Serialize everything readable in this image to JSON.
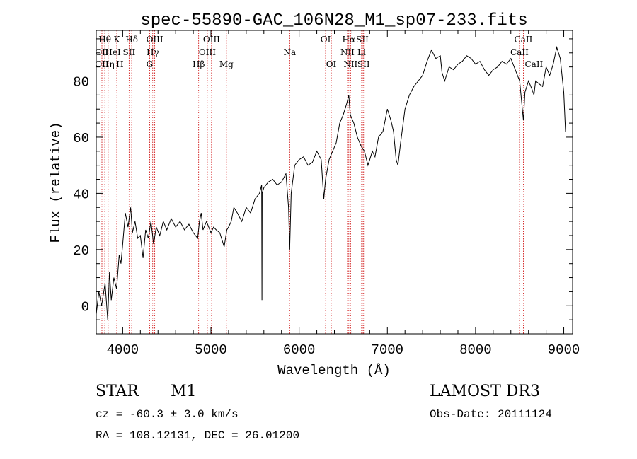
{
  "chart_data": {
    "type": "line",
    "title": "spec-55890-GAC_106N28_M1_sp07-233.fits",
    "xlabel": "Wavelength (Å)",
    "ylabel": "Flux (relative)",
    "xlim": [
      3700,
      9100
    ],
    "ylim": [
      -10,
      98
    ],
    "xticks": [
      4000,
      5000,
      6000,
      7000,
      8000,
      9000
    ],
    "yticks": [
      0,
      20,
      40,
      60,
      80
    ],
    "grid": false,
    "series": [
      {
        "name": "flux",
        "x": [
          3700,
          3730,
          3760,
          3800,
          3830,
          3850,
          3870,
          3900,
          3930,
          3960,
          3980,
          4000,
          4030,
          4060,
          4090,
          4110,
          4140,
          4170,
          4200,
          4230,
          4260,
          4290,
          4320,
          4350,
          4380,
          4420,
          4460,
          4500,
          4550,
          4600,
          4650,
          4700,
          4750,
          4800,
          4850,
          4870,
          4890,
          4910,
          4950,
          5000,
          5030,
          5060,
          5100,
          5150,
          5180,
          5200,
          5230,
          5260,
          5300,
          5350,
          5400,
          5450,
          5500,
          5550,
          5575,
          5578,
          5581,
          5600,
          5650,
          5700,
          5750,
          5800,
          5850,
          5880,
          5893,
          5910,
          5950,
          6000,
          6050,
          6100,
          6150,
          6200,
          6250,
          6280,
          6300,
          6340,
          6380,
          6420,
          6460,
          6500,
          6540,
          6563,
          6580,
          6620,
          6660,
          6700,
          6740,
          6780,
          6800,
          6830,
          6860,
          6900,
          6950,
          7000,
          7040,
          7070,
          7100,
          7120,
          7150,
          7200,
          7250,
          7300,
          7350,
          7400,
          7450,
          7500,
          7550,
          7600,
          7620,
          7650,
          7700,
          7750,
          7800,
          7850,
          7900,
          7950,
          8000,
          8050,
          8100,
          8150,
          8200,
          8250,
          8300,
          8350,
          8400,
          8450,
          8500,
          8542,
          8560,
          8600,
          8640,
          8662,
          8680,
          8720,
          8760,
          8800,
          8840,
          8880,
          8920,
          8960,
          9000,
          9020
        ],
        "values": [
          -3,
          5,
          0,
          8,
          -5,
          12,
          2,
          10,
          6,
          18,
          15,
          22,
          33,
          28,
          35,
          26,
          30,
          24,
          25,
          17,
          27,
          24,
          30,
          22,
          28,
          25,
          30,
          27,
          31,
          28,
          30,
          27,
          29,
          26,
          24,
          30,
          33,
          27,
          30,
          26,
          28,
          27,
          26,
          21,
          27,
          28,
          30,
          35,
          33,
          30,
          35,
          33,
          38,
          40,
          43,
          2,
          40,
          42,
          44,
          45,
          43,
          44,
          47,
          35,
          20,
          40,
          50,
          52,
          53,
          50,
          51,
          55,
          52,
          38,
          45,
          52,
          55,
          58,
          65,
          68,
          72,
          75,
          68,
          65,
          60,
          57,
          55,
          50,
          52,
          55,
          53,
          60,
          62,
          70,
          66,
          62,
          52,
          50,
          58,
          70,
          75,
          78,
          80,
          82,
          87,
          91,
          88,
          89,
          83,
          80,
          85,
          84,
          86,
          87,
          89,
          88,
          86,
          87,
          84,
          82,
          84,
          85,
          87,
          86,
          88,
          84,
          80,
          66,
          76,
          80,
          77,
          75,
          80,
          79,
          78,
          85,
          82,
          86,
          92,
          88,
          76,
          62
        ]
      }
    ],
    "line_markers": [
      {
        "label": "Hθ",
        "wavelength": 3797,
        "row": 1
      },
      {
        "label": "OII",
        "wavelength": 3727,
        "row": 2
      },
      {
        "label": "OII",
        "wavelength": 3727,
        "row": 3
      },
      {
        "label": "K",
        "wavelength": 3933,
        "row": 1
      },
      {
        "label": "HeI",
        "wavelength": 3889,
        "row": 2
      },
      {
        "label": "Hη",
        "wavelength": 3835,
        "row": 3
      },
      {
        "label": "H",
        "wavelength": 3968,
        "row": 3
      },
      {
        "label": "SII",
        "wavelength": 4072,
        "row": 2
      },
      {
        "label": "Hδ",
        "wavelength": 4102,
        "row": 1
      },
      {
        "label": "OIII",
        "wavelength": 4363,
        "row": 1
      },
      {
        "label": "Hγ",
        "wavelength": 4340,
        "row": 2
      },
      {
        "label": "G",
        "wavelength": 4305,
        "row": 3
      },
      {
        "label": "OIII",
        "wavelength": 5007,
        "row": 1
      },
      {
        "label": "OIII",
        "wavelength": 4959,
        "row": 2
      },
      {
        "label": "Hβ",
        "wavelength": 4861,
        "row": 3
      },
      {
        "label": "Mg",
        "wavelength": 5175,
        "row": 3
      },
      {
        "label": "Na",
        "wavelength": 5893,
        "row": 2
      },
      {
        "label": "OI",
        "wavelength": 6300,
        "row": 1
      },
      {
        "label": "OI",
        "wavelength": 6364,
        "row": 3
      },
      {
        "label": "Hα",
        "wavelength": 6563,
        "row": 1
      },
      {
        "label": "SII",
        "wavelength": 6717,
        "row": 1
      },
      {
        "label": "NII",
        "wavelength": 6548,
        "row": 2
      },
      {
        "label": "Li",
        "wavelength": 6708,
        "row": 2
      },
      {
        "label": "NII",
        "wavelength": 6583,
        "row": 3
      },
      {
        "label": "SII",
        "wavelength": 6731,
        "row": 3
      },
      {
        "label": "CaII",
        "wavelength": 8542,
        "row": 1
      },
      {
        "label": "CaII",
        "wavelength": 8498,
        "row": 2
      },
      {
        "label": "CaII",
        "wavelength": 8662,
        "row": 3
      }
    ]
  },
  "info": {
    "object_class": "STAR",
    "subclass": "M1",
    "survey": "LAMOST DR3",
    "redshift_line": "cz = -60.3 ± 3.0 km/s",
    "obs_date": "Obs-Date: 20111124",
    "coords": "RA = 108.12131, DEC =  26.01200"
  },
  "colors": {
    "line": "#000000",
    "marker": "#cc0000",
    "background": "#ffffff"
  }
}
